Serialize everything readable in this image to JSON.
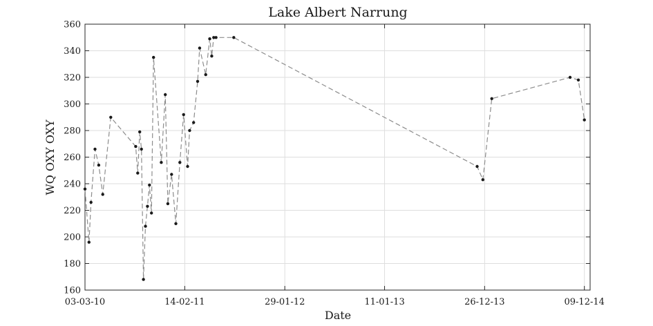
{
  "chart_data": {
    "type": "line",
    "title": "Lake Albert Narrung",
    "xlabel": "Date",
    "ylabel": "WQ OXY OXY",
    "xlim": [
      "2010-03-03",
      "2014-12-29"
    ],
    "ylim": [
      160,
      360
    ],
    "x_ticks": [
      {
        "date": "2010-03-03",
        "label": "03-03-10"
      },
      {
        "date": "2011-02-14",
        "label": "14-02-11"
      },
      {
        "date": "2012-01-29",
        "label": "29-01-12"
      },
      {
        "date": "2013-01-11",
        "label": "11-01-13"
      },
      {
        "date": "2013-12-26",
        "label": "26-12-13"
      },
      {
        "date": "2014-12-09",
        "label": "09-12-14"
      }
    ],
    "y_ticks": [
      160,
      180,
      200,
      220,
      240,
      260,
      280,
      300,
      320,
      340,
      360
    ],
    "grid": true,
    "series": [
      {
        "color": "#8c8c8c",
        "marker_color": "#1a1a1a",
        "x": [
          "2010-03-03",
          "2010-03-17",
          "2010-03-24",
          "2010-04-07",
          "2010-04-20",
          "2010-05-04",
          "2010-06-01",
          "2010-08-27",
          "2010-09-03",
          "2010-09-10",
          "2010-09-16",
          "2010-09-23",
          "2010-09-30",
          "2010-10-07",
          "2010-10-14",
          "2010-10-21",
          "2010-10-28",
          "2010-11-24",
          "2010-12-08",
          "2010-12-17",
          "2010-12-30",
          "2011-01-14",
          "2011-01-28",
          "2011-02-10",
          "2011-02-24",
          "2011-03-03",
          "2011-03-17",
          "2011-03-31",
          "2011-04-07",
          "2011-04-28",
          "2011-05-12",
          "2011-05-19",
          "2011-05-26",
          "2011-06-03",
          "2011-08-04",
          "2013-11-30",
          "2013-12-20",
          "2014-01-20",
          "2014-10-20",
          "2014-11-18",
          "2014-12-09"
        ],
        "y": [
          236,
          196,
          226,
          266,
          254,
          232,
          290,
          268,
          248,
          279,
          266,
          168,
          208,
          223,
          239,
          218,
          335,
          256,
          307,
          225,
          247,
          210,
          256,
          292,
          253,
          280,
          286,
          317,
          342,
          322,
          349,
          336,
          350,
          350,
          350,
          253,
          243,
          304,
          320,
          318,
          288
        ]
      }
    ]
  }
}
